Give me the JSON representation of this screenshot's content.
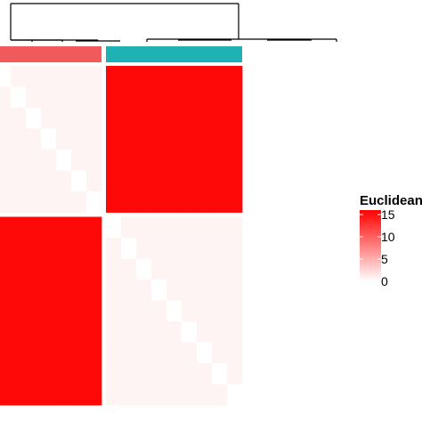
{
  "chart_data": {
    "type": "heatmap",
    "legend": {
      "title": "Euclidean",
      "ticks": [
        0,
        5,
        10,
        15
      ],
      "range": [
        0,
        16
      ],
      "colors": {
        "low": "#ffffff",
        "high": "#ff0000"
      }
    },
    "groups": [
      {
        "size": 7,
        "color": "#f05a5a"
      },
      {
        "size": 9,
        "color": "#1fb2b5"
      }
    ],
    "within_group_base": 0.7,
    "within_group_diagonal": 0,
    "between_group_value": 15.5,
    "dendrogram": {
      "root_split": [
        "group-1",
        "group-2"
      ]
    }
  }
}
